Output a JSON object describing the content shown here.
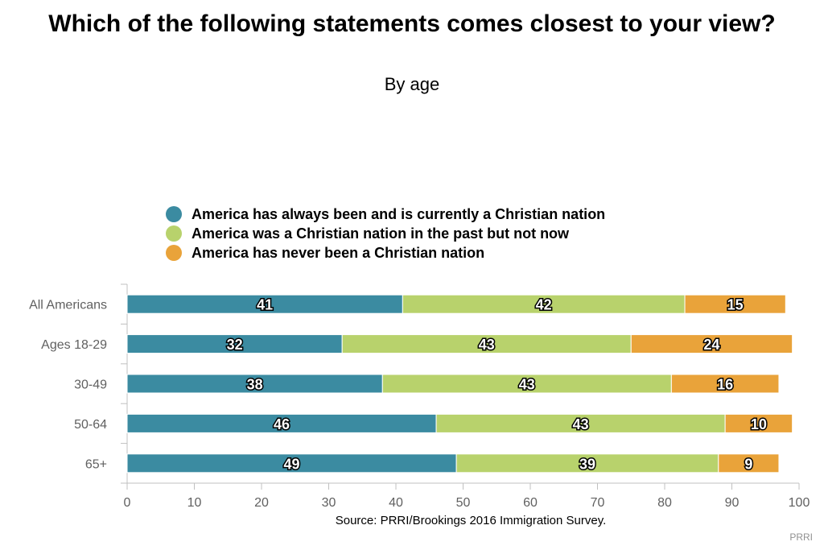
{
  "header": {
    "title": "Which of the following statements comes closest to your view?",
    "subtitle": "By age"
  },
  "legend": [
    {
      "label": "America has always been and is currently a Christian nation",
      "color": "#3b8ba1"
    },
    {
      "label": "America was a Christian nation in the past but not now",
      "color": "#b8d26c"
    },
    {
      "label": "America has never been a Christian nation",
      "color": "#e9a33a"
    }
  ],
  "chart_data": {
    "type": "bar",
    "orientation": "horizontal",
    "stacked": true,
    "title": "Which of the following statements comes closest to your view?",
    "subtitle": "By age",
    "categories": [
      "All Americans",
      "Ages 18-29",
      "30-49",
      "50-64",
      "65+"
    ],
    "series": [
      {
        "name": "America has always been and is currently a Christian nation",
        "color": "#3b8ba1",
        "values": [
          41,
          32,
          38,
          46,
          49
        ]
      },
      {
        "name": "America was a Christian nation in the past but not now",
        "color": "#b8d26c",
        "values": [
          42,
          43,
          43,
          43,
          39
        ]
      },
      {
        "name": "America has never been a Christian nation",
        "color": "#e9a33a",
        "values": [
          15,
          24,
          16,
          10,
          9
        ]
      }
    ],
    "xlim": [
      0,
      100
    ],
    "xticks": [
      0,
      10,
      20,
      30,
      40,
      50,
      60,
      70,
      80,
      90,
      100
    ],
    "grid": false,
    "legend_position": "top"
  },
  "footer": {
    "source": "Source: PRRI/Brookings 2016 Immigration Survey.",
    "credit": "PRRI"
  }
}
